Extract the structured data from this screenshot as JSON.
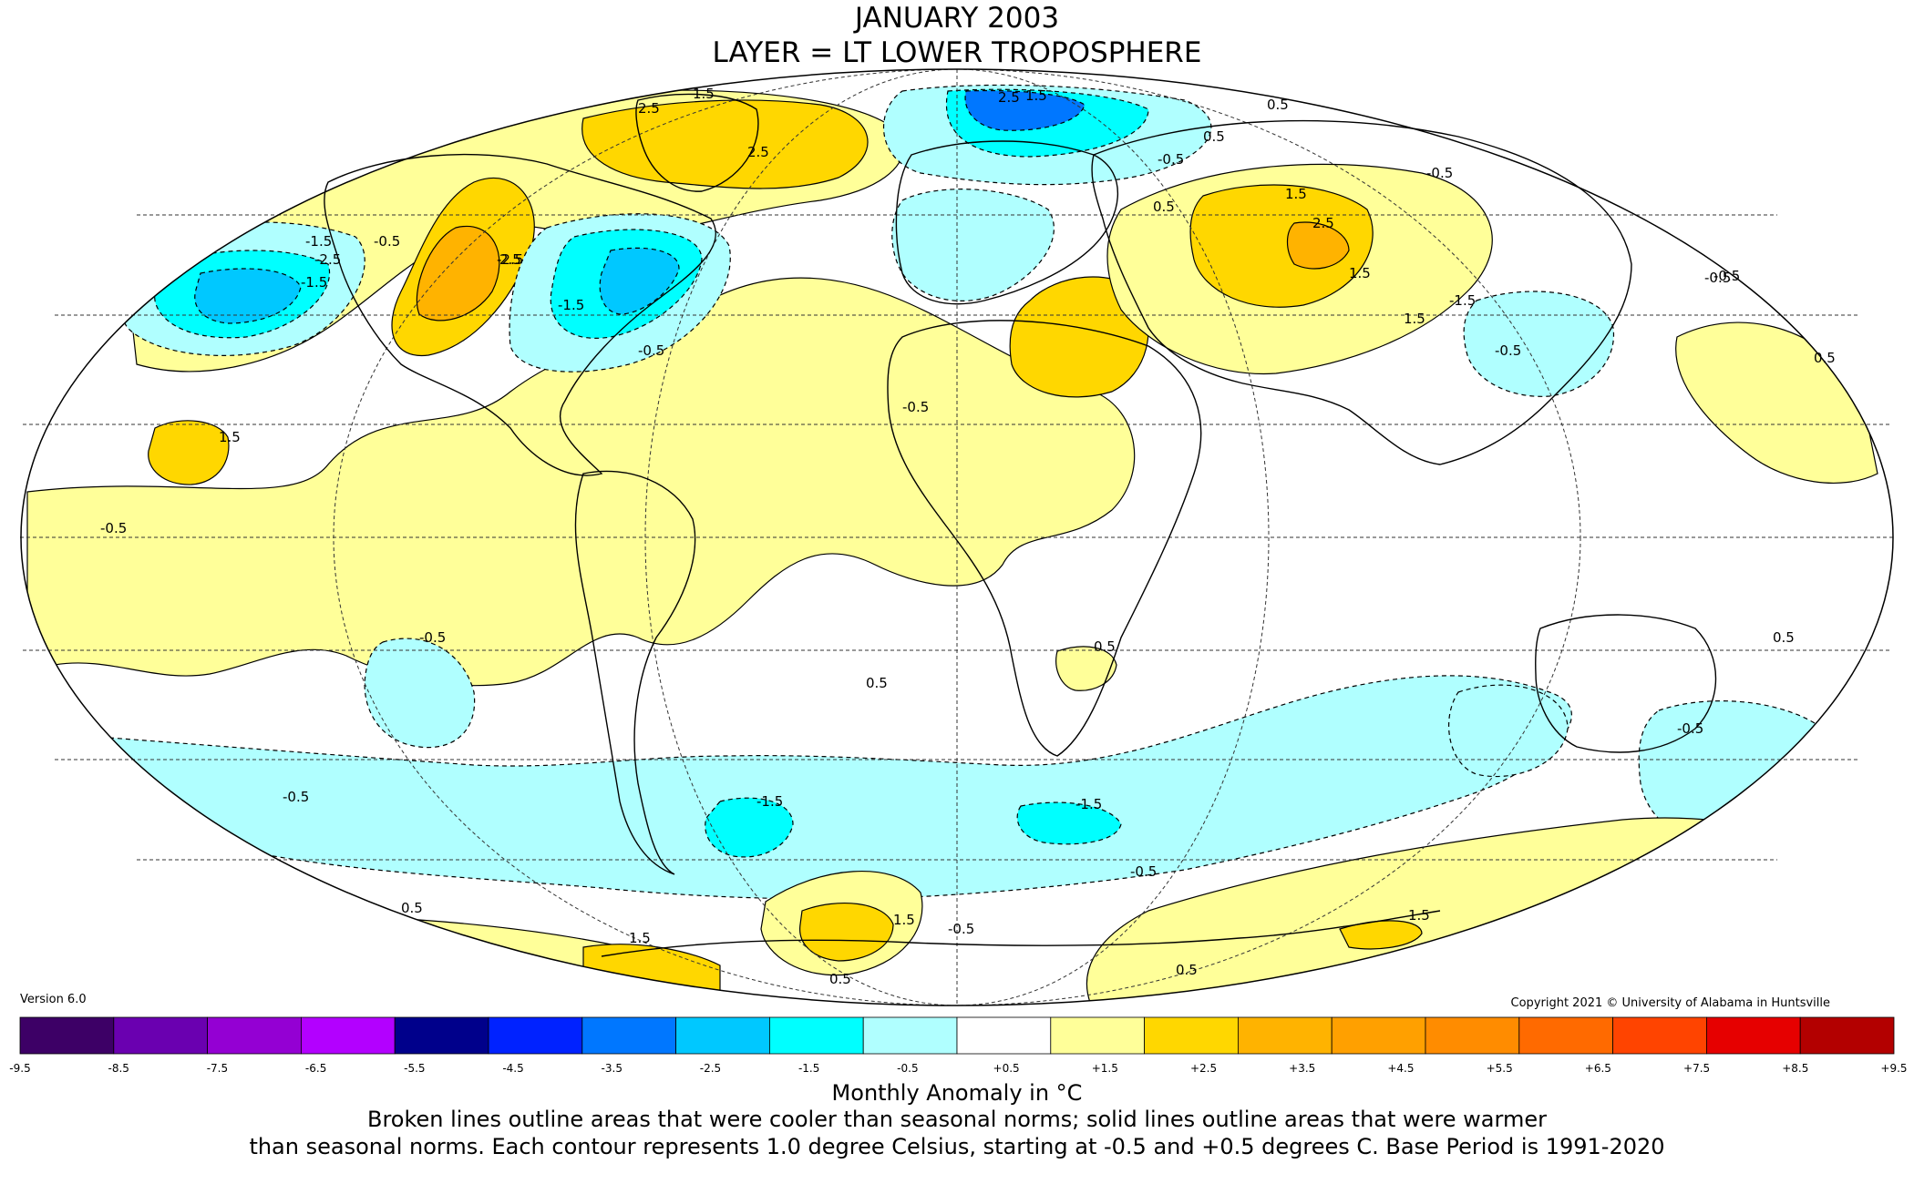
{
  "title": "JANUARY 2003",
  "subtitle": "LAYER = LT LOWER TROPOSPHERE",
  "version": "Version 6.0",
  "copyright": "Copyright 2021 © University of Alabama in Huntsville",
  "colorbar": {
    "ticks": [
      "-9.5",
      "-8.5",
      "-7.5",
      "-6.5",
      "-5.5",
      "-4.5",
      "-3.5",
      "-2.5",
      "-1.5",
      "-0.5",
      "+0.5",
      "+1.5",
      "+2.5",
      "+3.5",
      "+4.5",
      "+5.5",
      "+6.5",
      "+7.5",
      "+8.5",
      "+9.5"
    ],
    "colors": [
      "#3d0066",
      "#6a00b0",
      "#9400d3",
      "#b300ff",
      "#00008b",
      "#0022ff",
      "#0077ff",
      "#00c8ff",
      "#00ffff",
      "#b0ffff",
      "#ffffff",
      "#ffff99",
      "#ffd700",
      "#ffb300",
      "#ffa000",
      "#ff8c00",
      "#ff6a00",
      "#ff4400",
      "#e60000",
      "#b30000"
    ]
  },
  "axis_label": "Monthly Anomaly in °C",
  "note_line1": "Broken lines outline areas that were cooler than seasonal norms; solid lines outline areas that were warmer",
  "note_line2": "than seasonal norms. Each contour represents 1.0 degree Celsius, starting at -0.5 and +0.5 degrees C. Base Period is 1991-2020",
  "contour_labels": [
    "1.5",
    "2.5",
    "2.5",
    "-1.5",
    "-1.5",
    "-2.5",
    "-0.5",
    "-2.5",
    "2.5",
    "-1.5",
    "-0.5",
    "1.5",
    "-0.5",
    "-0.5",
    "0.5",
    "0.5",
    "-0.5",
    "-0.5",
    "-1.5",
    "-1.5",
    "-0.5",
    "-0.5",
    "0.5",
    "1.5",
    "1.5",
    "1.5",
    "0.5",
    "-0.5",
    "0.5",
    "-0.5",
    "1.5",
    "2.5",
    "1.5",
    "0.5",
    "-0.5",
    "0.5",
    "-0.5",
    "-1.5",
    "0.5",
    "-0.5",
    "1.5",
    "0.5",
    "0.5",
    "-0.5",
    "2.5",
    "1.5"
  ],
  "regions": [
    {
      "id": "arctic-warm-west",
      "sign": "warm"
    },
    {
      "id": "greenland-warm",
      "sign": "warm"
    },
    {
      "id": "alaska-cold",
      "sign": "cold"
    },
    {
      "id": "nw-america-warm",
      "sign": "warm"
    },
    {
      "id": "east-us-cold",
      "sign": "cold"
    },
    {
      "id": "north-atlantic-warm",
      "sign": "warm"
    },
    {
      "id": "europe-cold",
      "sign": "cold"
    },
    {
      "id": "scandinavia-cold",
      "sign": "cold"
    },
    {
      "id": "north-africa-warm",
      "sign": "warm"
    },
    {
      "id": "asia-warm",
      "sign": "warm"
    },
    {
      "id": "east-asia-cold",
      "sign": "cold"
    },
    {
      "id": "east-pacific-warm",
      "sign": "warm"
    },
    {
      "id": "southern-ocean-cold",
      "sign": "cold"
    },
    {
      "id": "antarctic-warm",
      "sign": "warm"
    }
  ]
}
